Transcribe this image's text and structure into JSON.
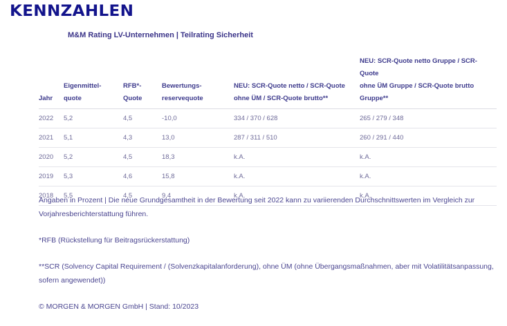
{
  "header": {
    "title": "KENNZAHLEN",
    "subtitle": "M&M Rating LV-Unternehmen | Teilrating Sicherheit"
  },
  "table": {
    "columns": [
      {
        "line1": "",
        "line2": "Jahr"
      },
      {
        "line1": "Eigenmittel-",
        "line2": "quote"
      },
      {
        "line1": "RFB*-",
        "line2": "Quote"
      },
      {
        "line1": "Bewertungs-",
        "line2": "reservequote"
      },
      {
        "line1": "NEU: SCR-Quote netto / SCR-Quote",
        "line2": "ohne ÜM / SCR-Quote brutto**"
      },
      {
        "line1": "NEU: SCR-Quote netto Gruppe / SCR-Quote",
        "line2": "ohne ÜM Gruppe / SCR-Quote brutto Gruppe**"
      }
    ],
    "rows": [
      [
        "2022",
        "5,2",
        "4,5",
        "-10,0",
        "334 / 370 / 628",
        "265 / 279 / 348"
      ],
      [
        "2021",
        "5,1",
        "4,3",
        "13,0",
        "287 / 311 / 510",
        "260 / 291 / 440"
      ],
      [
        "2020",
        "5,2",
        "4,5",
        "18,3",
        "k.A.",
        "k.A."
      ],
      [
        "2019",
        "5,3",
        "4,6",
        "15,8",
        "k.A.",
        "k.A."
      ],
      [
        "2018",
        "5,5",
        "4,5",
        "9,4",
        "k.A.",
        "k.A."
      ]
    ]
  },
  "notes": [
    "Angaben in Prozent | Die neue Grundgesamtheit in der Bewertung seit 2022 kann zu variierenden Durchschnittswerten im Vergleich zur Vorjahresberichterstattung führen.",
    "*RFB (Rückstellung für Beitragsrückerstattung)",
    "**SCR (Solvency Capital Requirement / (Solvenzkapitalanforderung), ohne ÜM (ohne Übergangsmaßnahmen, aber mit Volatilitätsanpassung, sofern angewendet))",
    "© MORGEN & MORGEN GmbH | Stand: 10/2023"
  ],
  "colors": {
    "title": "#13148c",
    "header_text": "#3d3a8c",
    "cell_text": "#6e6a99",
    "notes_text": "#4a4590",
    "divider": "#e4e4ea"
  }
}
